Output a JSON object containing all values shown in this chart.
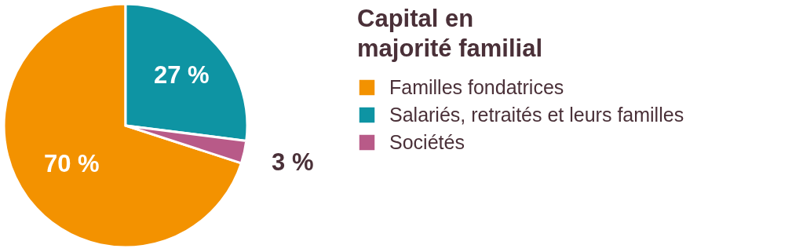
{
  "chart_data": {
    "type": "pie",
    "title": "Capital en\nmajorité familial",
    "categories": [
      "Familles fondatrices",
      "Salariés, retraités et leurs familles",
      "Sociétés"
    ],
    "values": [
      70,
      27,
      3
    ],
    "colors": [
      "#f39200",
      "#0e94a3",
      "#b85a88"
    ],
    "value_labels": [
      "70 %",
      "27 %",
      "3 %"
    ],
    "legend": "right"
  }
}
